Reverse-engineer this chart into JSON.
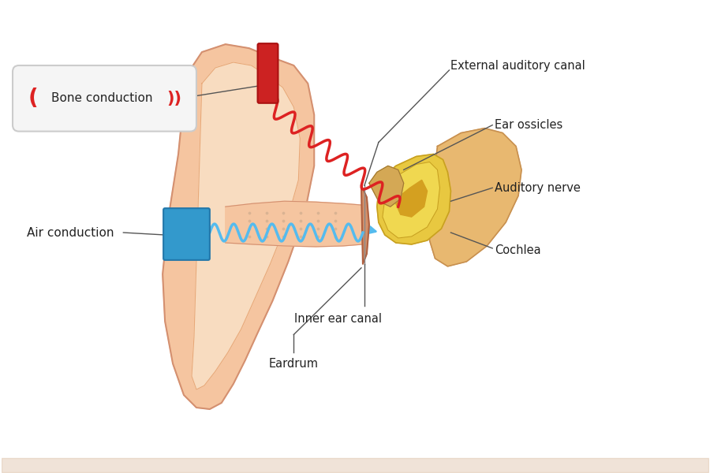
{
  "bg_color": "#ffffff",
  "labels": {
    "bone_conduction": "Bone conduction",
    "air_conduction": "Air conduction",
    "external_auditory_canal": "External auditory canal",
    "ear_ossicles": "Ear ossicles",
    "auditory_nerve": "Auditory nerve",
    "cochlea": "Cochlea",
    "inner_ear_canal": "Inner ear canal",
    "eardrum": "Eardrum"
  },
  "colors": {
    "ear_skin": "#f5c5a0",
    "ear_skin2": "#f8dcc0",
    "ear_dark": "#d49070",
    "ear_medium": "#e8a878",
    "bone_device": "#cc2222",
    "air_device": "#3399cc",
    "air_device_dark": "#2277aa",
    "red_wave": "#dd2222",
    "blue_wave": "#55bbee",
    "cochlea_yellow": "#e8c840",
    "cochlea_light": "#f0d850",
    "cochlea_dark": "#c8a020",
    "cochlea_inner": "#d4a020",
    "right_struct": "#e8b870",
    "right_struct_dark": "#c89050",
    "ossicle": "#d4a855",
    "ossicle_dark": "#a07830",
    "label_line": "#555555",
    "text_color": "#222222",
    "box_fill": "#f5f5f5",
    "box_edge": "#cccccc",
    "red_paren": "#dd2222",
    "eardrum_color": "#d4906a",
    "eardrum_dark": "#b06040",
    "divider": "#888888",
    "dots": "#d4b090",
    "white": "#ffffff",
    "bottom_strip": "#d4b090"
  }
}
